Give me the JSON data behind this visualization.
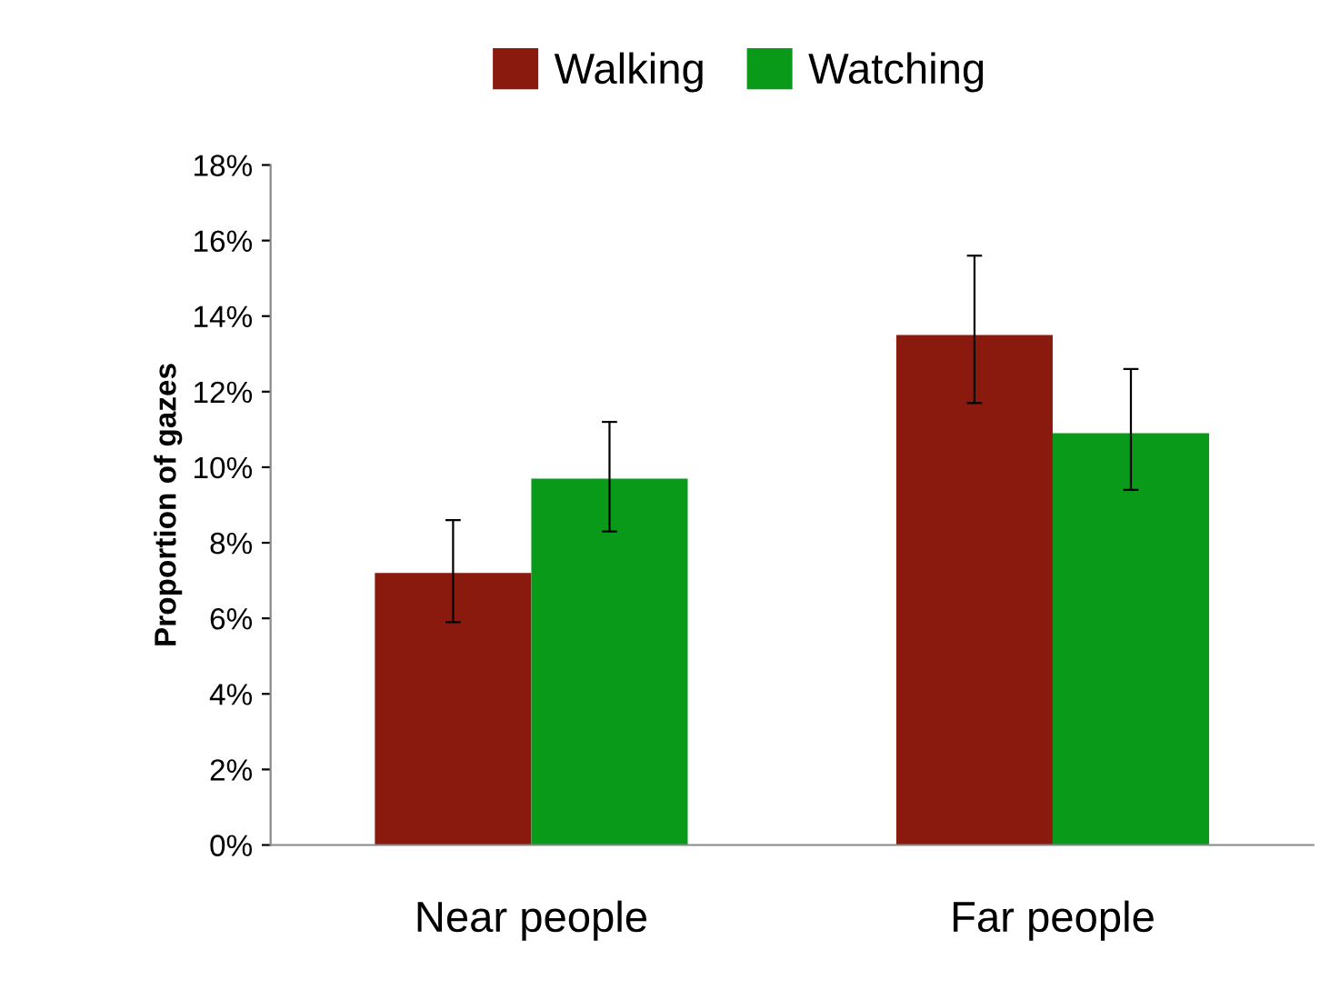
{
  "chart_data": {
    "type": "bar",
    "categories": [
      "Near people",
      "Far people"
    ],
    "ylabel": "Proportion of gazes",
    "series": [
      {
        "name": "Walking",
        "color": "#8b1a0e",
        "values": [
          7.2,
          13.5
        ],
        "errors": [
          [
            5.9,
            8.6
          ],
          [
            11.7,
            15.6
          ]
        ]
      },
      {
        "name": "Watching",
        "color": "#0a9a1a",
        "values": [
          9.7,
          10.9
        ],
        "errors": [
          [
            8.3,
            11.2
          ],
          [
            9.4,
            12.6
          ]
        ]
      }
    ],
    "ylim": [
      0,
      18
    ],
    "yticks": [
      {
        "value": 0,
        "label": "0%"
      },
      {
        "value": 2,
        "label": "2%"
      },
      {
        "value": 4,
        "label": "4%"
      },
      {
        "value": 6,
        "label": "6%"
      },
      {
        "value": 8,
        "label": "8%"
      },
      {
        "value": 10,
        "label": "10%"
      },
      {
        "value": 12,
        "label": "12%"
      },
      {
        "value": 14,
        "label": "14%"
      },
      {
        "value": 16,
        "label": "16%"
      },
      {
        "value": 18,
        "label": "18%"
      }
    ],
    "grid": false,
    "legend": "top"
  }
}
